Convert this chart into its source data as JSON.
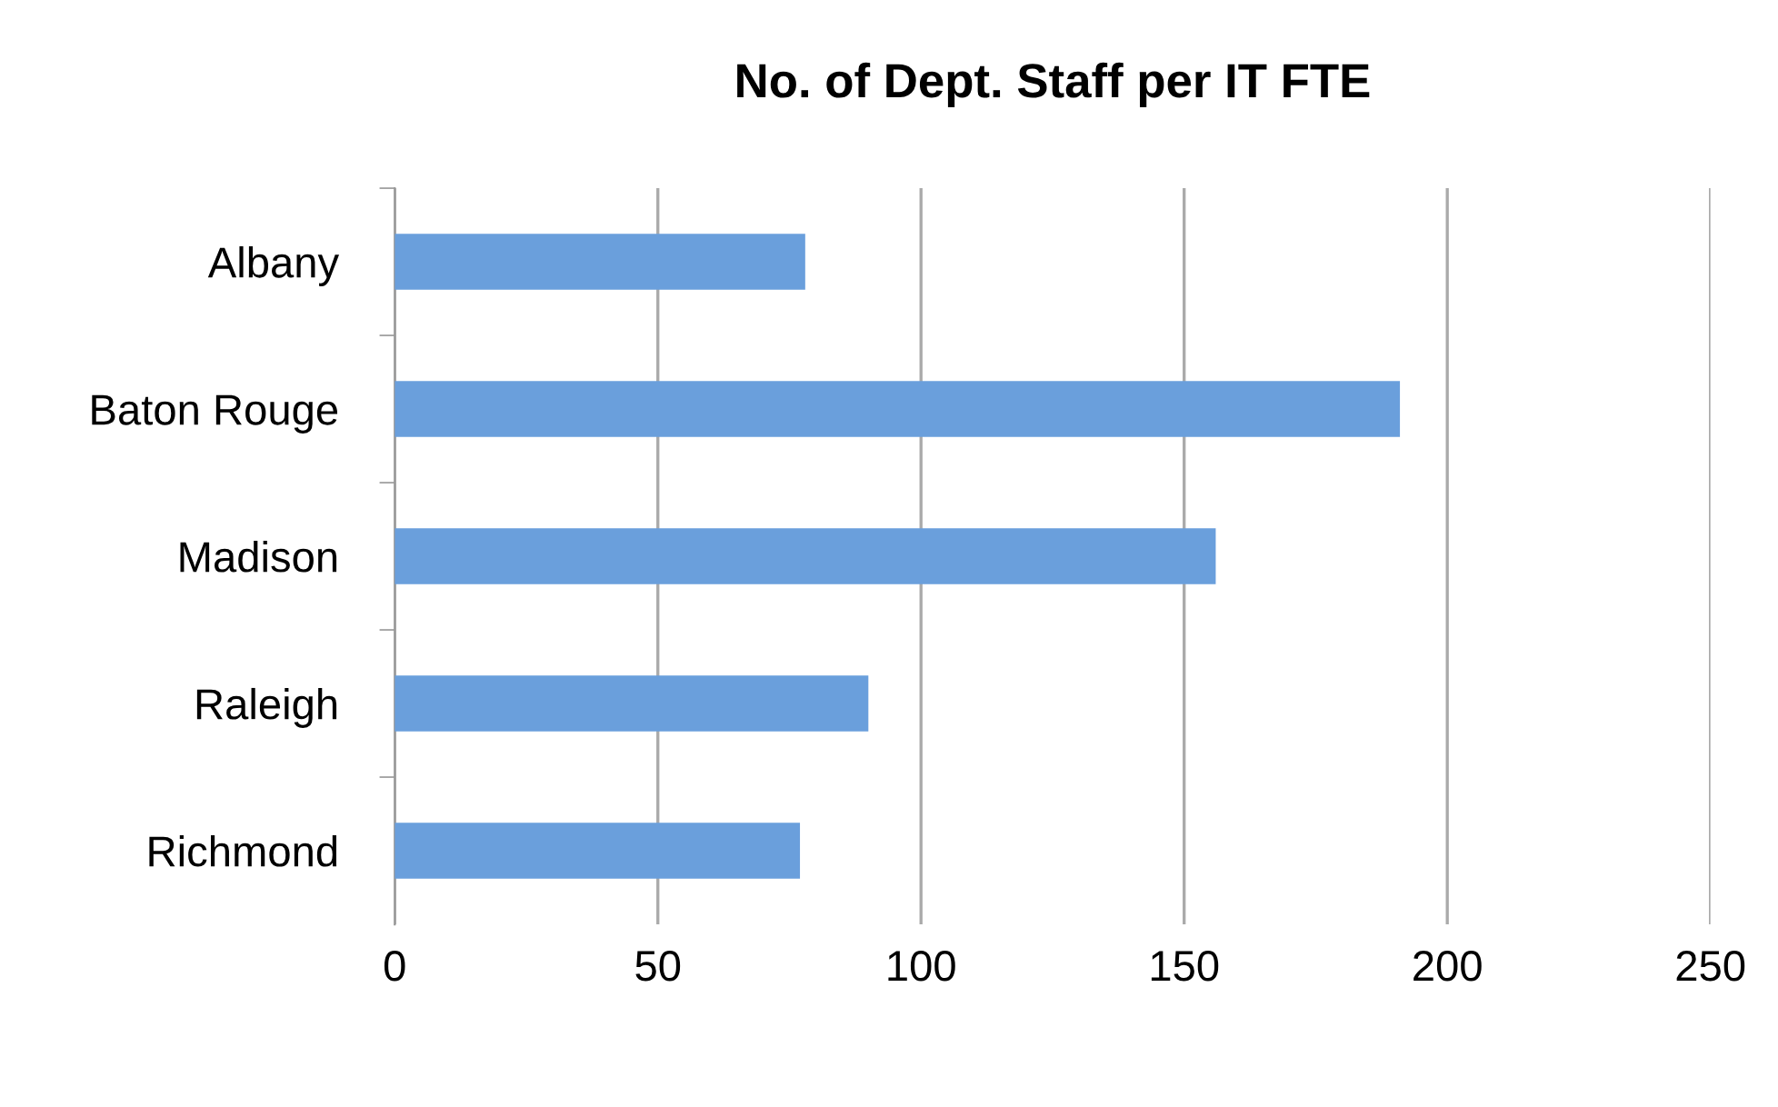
{
  "chart_data": {
    "type": "bar",
    "orientation": "horizontal",
    "title": "No. of Dept. Staff per IT FTE",
    "categories": [
      "Albany",
      "Baton Rouge",
      "Madison",
      "Raleigh",
      "Richmond"
    ],
    "values": [
      78,
      191,
      156,
      90,
      77
    ],
    "color": "#6a9fdc",
    "xlim": [
      0,
      250
    ],
    "xticks": [
      0,
      50,
      100,
      150,
      200,
      250
    ],
    "grid": "x",
    "legend": false
  }
}
